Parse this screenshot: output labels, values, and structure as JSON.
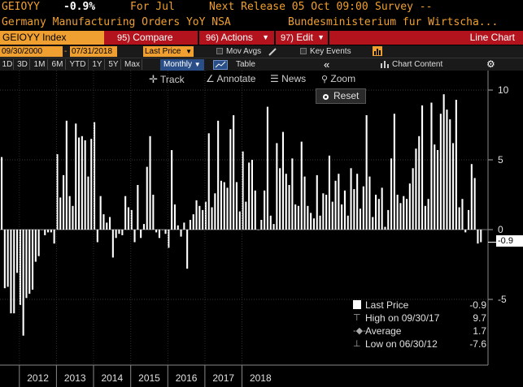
{
  "header": {
    "ticker": "GEIOYY",
    "change": "-0.9%",
    "period": "For Jul",
    "next_release": "Next Release 05 Oct 09:00",
    "survey": "Survey --",
    "description": "Germany Manufacturing Orders YoY NSA",
    "source": "Bundesministerium fur Wirtscha..."
  },
  "toolbar": {
    "security": "GEIOYY Index",
    "compare_num": "95)",
    "compare": "Compare",
    "actions_num": "96)",
    "actions": "Actions",
    "edit_num": "97)",
    "edit": "Edit",
    "chart_type": "Line Chart"
  },
  "controls": {
    "start_date": "09/30/2000",
    "end_date": "07/31/2018",
    "field": "Last Price",
    "mov_avgs": "Mov Avgs",
    "key_events": "Key Events",
    "chart_content": "Chart Content"
  },
  "ranges": [
    "1D",
    "3D",
    "1M",
    "6M",
    "YTD",
    "1Y",
    "5Y",
    "Max"
  ],
  "frequency": "Monthly",
  "table_label": "Table",
  "chart_tools": {
    "track": "Track",
    "annotate": "Annotate",
    "news": "News",
    "zoom": "Zoom",
    "reset": "Reset"
  },
  "legend": {
    "last_price_label": "Last Price",
    "last_price_value": "-0.9",
    "high_label": "High on 09/30/17",
    "high_value": "9.7",
    "average_label": "Average",
    "average_value": "1.7",
    "low_label": "Low on 06/30/12",
    "low_value": "-7.6"
  },
  "last_tag": "-0.9",
  "icons": [
    "pencil-icon",
    "chevron-left-double-icon",
    "bar-chart-icon",
    "gear-icon",
    "crosshair-icon",
    "annotate-icon",
    "news-icon",
    "zoom-icon"
  ],
  "colors": {
    "accent": "#f0a030",
    "button": "#b2131c",
    "bar": "#ffffff",
    "background": "#000000"
  },
  "chart_data": {
    "type": "bar",
    "x_start": "2011-07",
    "x_end": "2018-07",
    "x_tick_labels": [
      "2012",
      "2013",
      "2014",
      "2015",
      "2016",
      "2017",
      "2018"
    ],
    "y_tick_labels": [
      "10",
      "5",
      "0",
      "-5"
    ],
    "ylim": [
      -10.7,
      10.7
    ],
    "grid": true,
    "values": [
      5.2,
      -4.2,
      -4.1,
      -6.0,
      -6.0,
      -3.1,
      -5.4,
      -7.6,
      -4.9,
      -4.6,
      -4.3,
      -2.3,
      -1.9,
      0.0,
      -0.4,
      -0.2,
      -0.2,
      -1.0,
      5.4,
      2.3,
      3.9,
      7.8,
      2.4,
      1.7,
      7.6,
      6.6,
      6.7,
      6.4,
      3.8,
      6.5,
      7.7,
      -0.9,
      2.4,
      1.1,
      0.5,
      0.9,
      -2.0,
      -0.6,
      -0.3,
      -0.4,
      2.4,
      1.6,
      1.4,
      -0.9,
      3.2,
      -0.6,
      0.4,
      4.5,
      6.7,
      2.5,
      -0.2,
      -0.6,
      0.0,
      -0.3,
      -1.3,
      5.7,
      1.8,
      0.3,
      -0.5,
      0.5,
      -2.8,
      0.7,
      1.1,
      2.1,
      1.7,
      1.4,
      2.0,
      6.9,
      1.6,
      2.6,
      7.8,
      3.5,
      3.4,
      3.0,
      7.2,
      8.2,
      3.4,
      1.3,
      5.6,
      2.0,
      4.8,
      5.0,
      2.8,
      0.0,
      0.7,
      2.8,
      8.8,
      1.0,
      0.4,
      6.2,
      4.4,
      7.0,
      4.0,
      3.2,
      5.1,
      1.8,
      1.7,
      6.3,
      3.8,
      1.7,
      1.2,
      0.8,
      3.9,
      1.0,
      2.6,
      2.5,
      5.3,
      2.0,
      3.5,
      4.0,
      1.8,
      2.8,
      1.0,
      4.4,
      2.9,
      4.0,
      1.5,
      3.1,
      8.2,
      3.8,
      0.9,
      2.5,
      2.2,
      3.0,
      0.2,
      1.4,
      5.1,
      8.3,
      2.5,
      1.9,
      2.4,
      2.2,
      3.3,
      4.4,
      5.8,
      6.7,
      8.9,
      1.7,
      2.2,
      9.1,
      6.1,
      5.7,
      8.3,
      9.7,
      8.6,
      7.9,
      6.2,
      9.3,
      1.6,
      2.2,
      -0.2,
      1.4,
      4.7,
      3.7,
      -1.0,
      -0.9
    ]
  }
}
